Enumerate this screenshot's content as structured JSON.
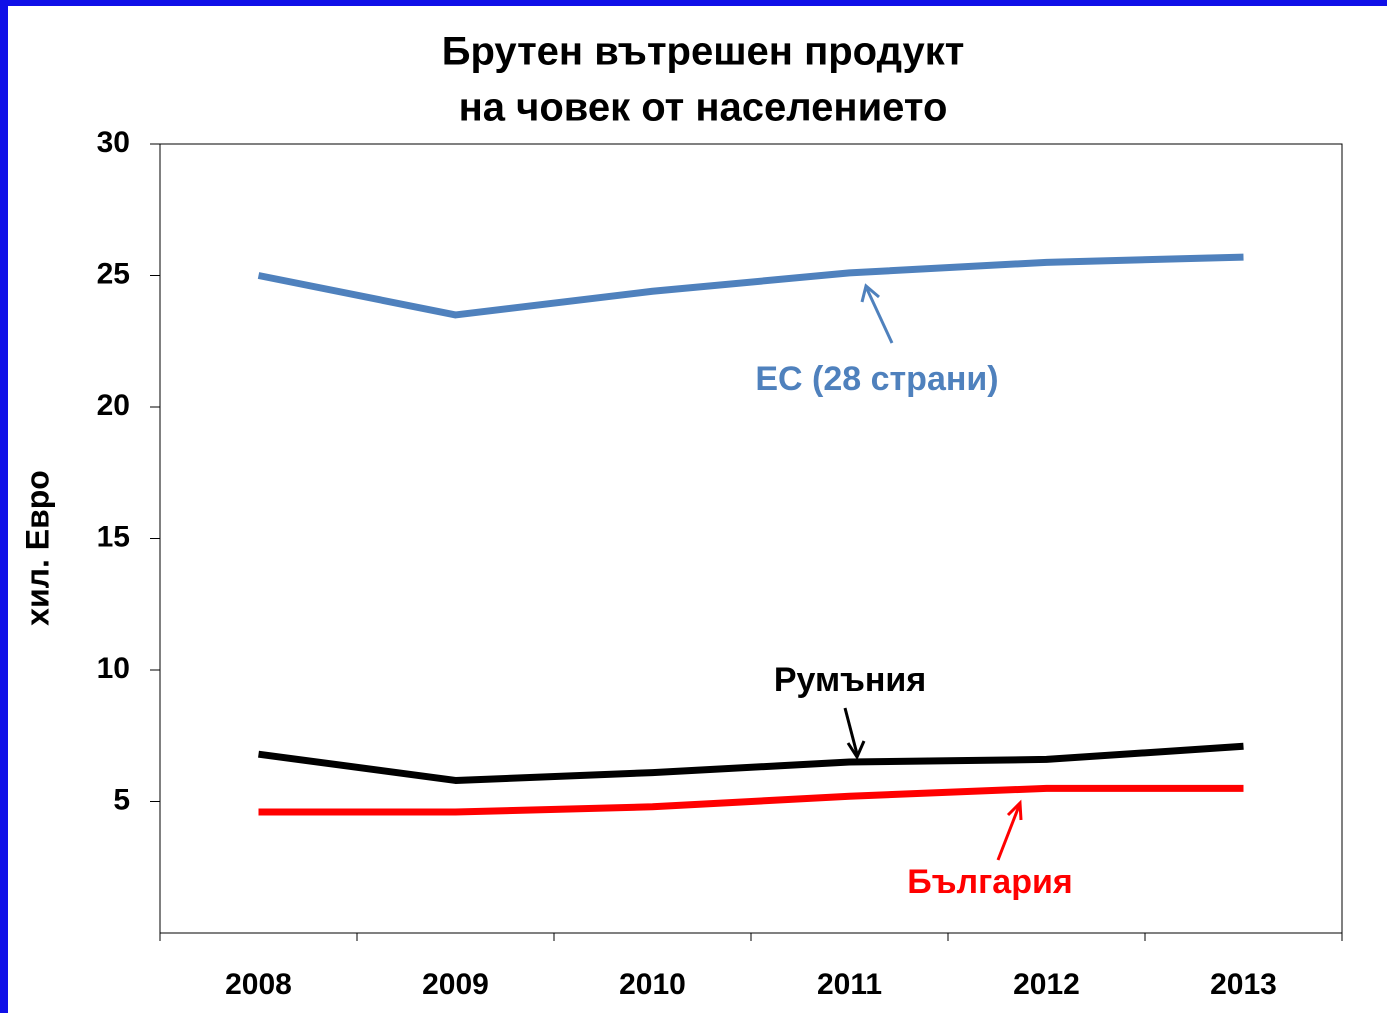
{
  "chart_data": {
    "type": "line",
    "title": [
      "Брутен вътрешен продукт",
      "на човек от населението"
    ],
    "y_label": "хил. Евро",
    "categories": [
      "2008",
      "2009",
      "2010",
      "2011",
      "2012",
      "2013"
    ],
    "series": [
      {
        "name": "ЕС (28 страни)",
        "color": "#4f81bd",
        "values": [
          25.0,
          23.5,
          24.4,
          25.1,
          25.5,
          25.7
        ]
      },
      {
        "name": "Румъния",
        "color": "#000000",
        "values": [
          6.8,
          5.8,
          6.1,
          6.5,
          6.6,
          7.1
        ]
      },
      {
        "name": "България",
        "color": "#ff0000",
        "values": [
          4.6,
          4.6,
          4.8,
          5.2,
          5.5,
          5.5
        ]
      }
    ],
    "ylim": [
      0,
      30
    ],
    "yticks": [
      5,
      10,
      15,
      20,
      25,
      30
    ],
    "grid": false
  }
}
